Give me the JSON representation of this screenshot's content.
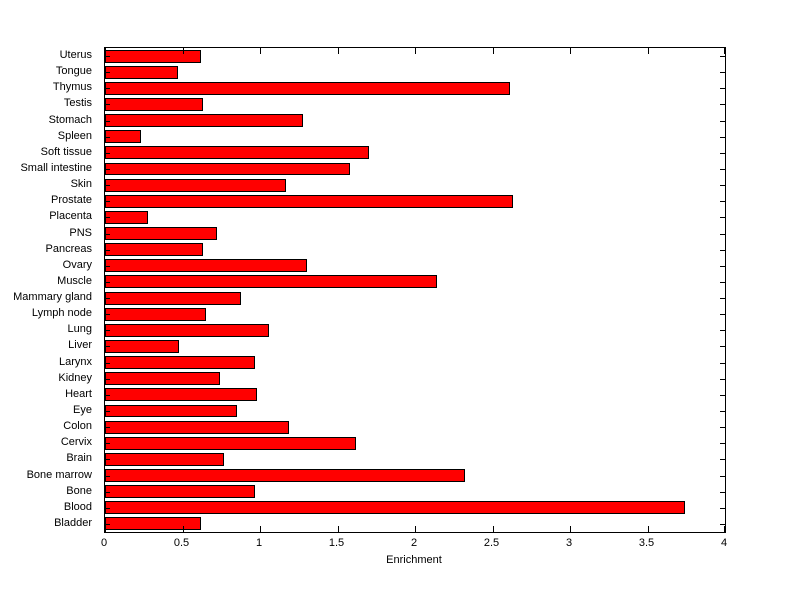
{
  "chart_data": {
    "type": "bar",
    "orientation": "horizontal",
    "title": "",
    "xlabel": "Enrichment",
    "ylabel": "",
    "xlim": [
      0,
      4
    ],
    "xticks": [
      0,
      0.5,
      1,
      1.5,
      2,
      2.5,
      3,
      3.5,
      4
    ],
    "xtick_labels": [
      "0",
      "0.5",
      "1",
      "1.5",
      "2",
      "2.5",
      "3",
      "3.5",
      "4"
    ],
    "grid": false,
    "legend": null,
    "bar_color": "#ff0000",
    "bar_edge_color": "#000000",
    "categories": [
      "Uterus",
      "Tongue",
      "Thymus",
      "Testis",
      "Stomach",
      "Spleen",
      "Soft tissue",
      "Small intestine",
      "Skin",
      "Prostate",
      "Placenta",
      "PNS",
      "Pancreas",
      "Ovary",
      "Muscle",
      "Mammary gland",
      "Lymph node",
      "Lung",
      "Liver",
      "Larynx",
      "Kidney",
      "Heart",
      "Eye",
      "Colon",
      "Cervix",
      "Brain",
      "Bone marrow",
      "Bone",
      "Blood",
      "Bladder"
    ],
    "values": [
      0.62,
      0.47,
      2.61,
      0.63,
      1.28,
      0.23,
      1.7,
      1.58,
      1.17,
      2.63,
      0.28,
      0.72,
      0.63,
      1.3,
      2.14,
      0.88,
      0.65,
      1.06,
      0.48,
      0.97,
      0.74,
      0.98,
      0.85,
      1.19,
      1.62,
      0.77,
      2.32,
      0.97,
      3.74,
      0.62
    ]
  }
}
